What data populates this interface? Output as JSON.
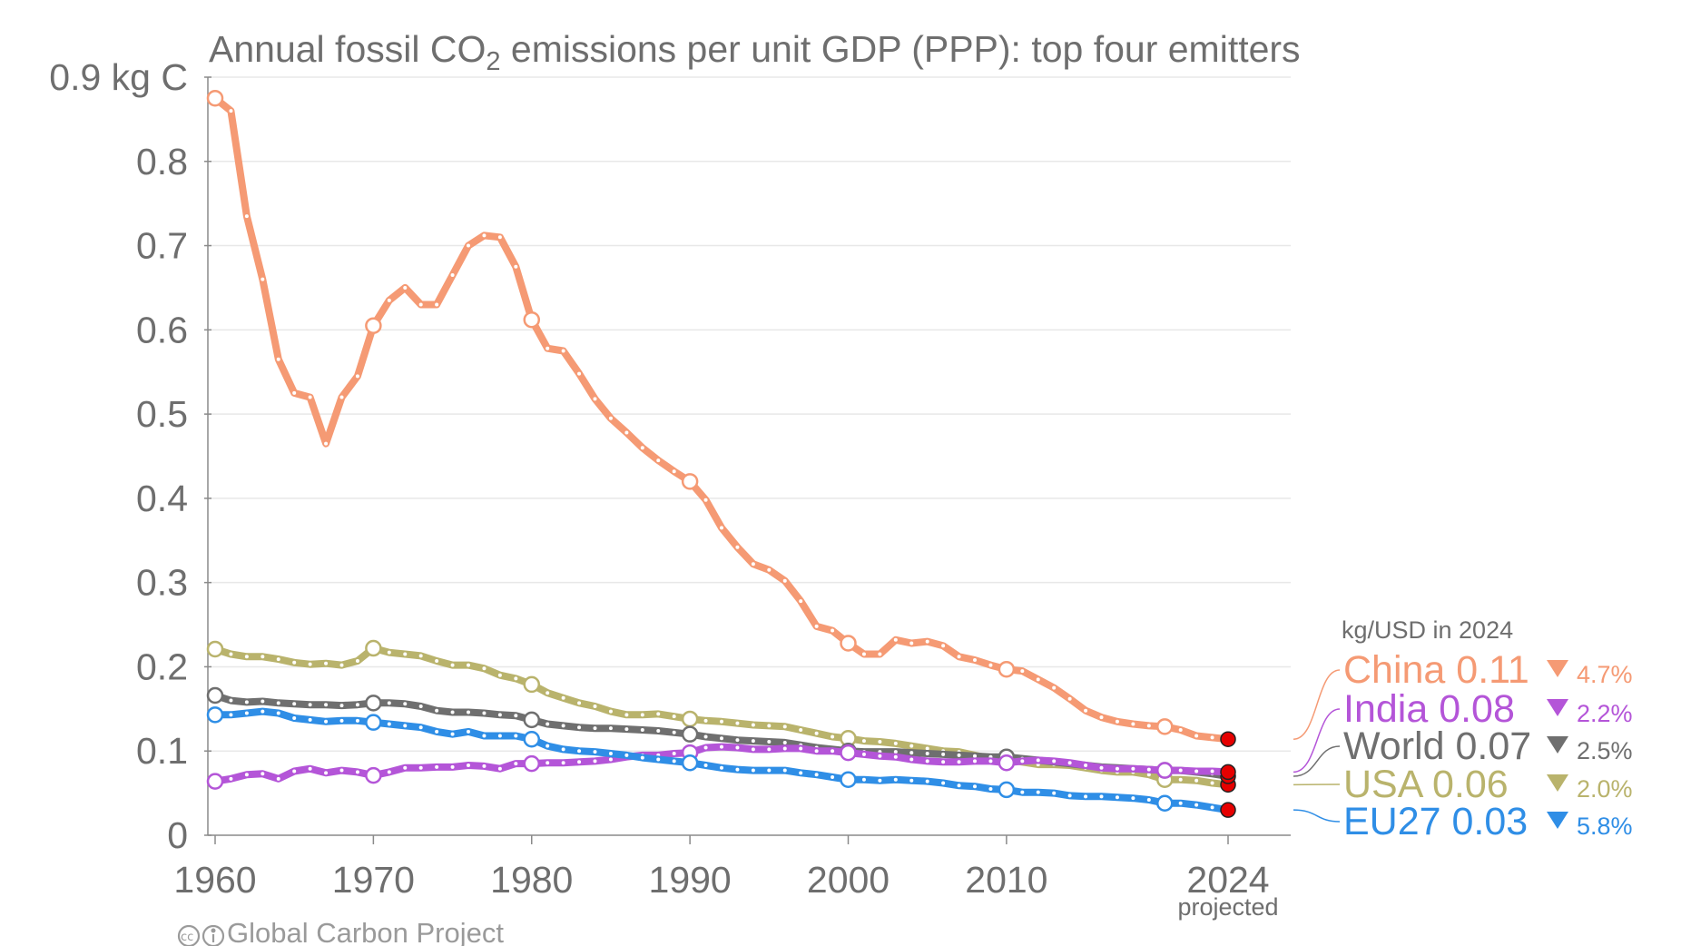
{
  "chart_data": {
    "type": "line",
    "title_parts": {
      "before": "Annual fossil CO",
      "sub": "2",
      "after": " emissions per unit GDP (PPP): top four emitters"
    },
    "y_unit_label": "0.9 kg C",
    "y_ticks": [
      {
        "value": 0,
        "label": "0"
      },
      {
        "value": 0.1,
        "label": "0.1"
      },
      {
        "value": 0.2,
        "label": "0.2"
      },
      {
        "value": 0.3,
        "label": "0.3"
      },
      {
        "value": 0.4,
        "label": "0.4"
      },
      {
        "value": 0.5,
        "label": "0.5"
      },
      {
        "value": 0.6,
        "label": "0.6"
      },
      {
        "value": 0.7,
        "label": "0.7"
      },
      {
        "value": 0.8,
        "label": "0.8"
      },
      {
        "value": 0.9,
        "label": "0.9 kg C"
      }
    ],
    "x_ticks": [
      {
        "value": 1960,
        "label": "1960"
      },
      {
        "value": 1970,
        "label": "1970"
      },
      {
        "value": 1980,
        "label": "1980"
      },
      {
        "value": 1990,
        "label": "1990"
      },
      {
        "value": 2000,
        "label": "2000"
      },
      {
        "value": 2010,
        "label": "2010"
      },
      {
        "value": 2024,
        "label": "2024"
      }
    ],
    "x_sublabel": "projected",
    "xlim": [
      1960,
      2024
    ],
    "ylim": [
      0,
      0.9
    ],
    "grid": "horizontal",
    "legend_title": "kg/USD in 2024",
    "legend_position": "right",
    "open_marker_years": [
      1960,
      1970,
      1980,
      1990,
      2000,
      2010,
      2020
    ],
    "projected_year": 2024,
    "series": [
      {
        "name": "China",
        "color": "#f59a74",
        "value_label": "0.11",
        "change": "4.7%",
        "x": [
          1960,
          1961,
          1962,
          1963,
          1964,
          1965,
          1966,
          1967,
          1968,
          1969,
          1970,
          1971,
          1972,
          1973,
          1974,
          1975,
          1976,
          1977,
          1978,
          1979,
          1980,
          1981,
          1982,
          1983,
          1984,
          1985,
          1986,
          1987,
          1988,
          1989,
          1990,
          1991,
          1992,
          1993,
          1994,
          1995,
          1996,
          1997,
          1998,
          1999,
          2000,
          2001,
          2002,
          2003,
          2004,
          2005,
          2006,
          2007,
          2008,
          2009,
          2010,
          2011,
          2012,
          2013,
          2014,
          2015,
          2016,
          2017,
          2018,
          2019,
          2020,
          2021,
          2022,
          2023,
          2024
        ],
        "values": [
          0.875,
          0.86,
          0.735,
          0.66,
          0.565,
          0.525,
          0.52,
          0.465,
          0.52,
          0.545,
          0.605,
          0.635,
          0.65,
          0.63,
          0.63,
          0.665,
          0.7,
          0.712,
          0.71,
          0.675,
          0.612,
          0.578,
          0.575,
          0.548,
          0.518,
          0.495,
          0.478,
          0.46,
          0.445,
          0.432,
          0.42,
          0.398,
          0.365,
          0.342,
          0.322,
          0.315,
          0.302,
          0.278,
          0.248,
          0.243,
          0.228,
          0.215,
          0.215,
          0.232,
          0.228,
          0.23,
          0.225,
          0.212,
          0.208,
          0.202,
          0.197,
          0.195,
          0.185,
          0.175,
          0.162,
          0.148,
          0.14,
          0.135,
          0.132,
          0.13,
          0.129,
          0.125,
          0.118,
          0.116,
          0.114
        ]
      },
      {
        "name": "India",
        "color": "#b455d8",
        "value_label": "0.08",
        "change": "2.2%",
        "x": [
          1960,
          1961,
          1962,
          1963,
          1964,
          1965,
          1966,
          1967,
          1968,
          1969,
          1970,
          1971,
          1972,
          1973,
          1974,
          1975,
          1976,
          1977,
          1978,
          1979,
          1980,
          1981,
          1982,
          1983,
          1984,
          1985,
          1986,
          1987,
          1988,
          1989,
          1990,
          1991,
          1992,
          1993,
          1994,
          1995,
          1996,
          1997,
          1998,
          1999,
          2000,
          2001,
          2002,
          2003,
          2004,
          2005,
          2006,
          2007,
          2008,
          2009,
          2010,
          2011,
          2012,
          2013,
          2014,
          2015,
          2016,
          2017,
          2018,
          2019,
          2020,
          2021,
          2022,
          2023,
          2024
        ],
        "values": [
          0.064,
          0.067,
          0.072,
          0.073,
          0.067,
          0.076,
          0.079,
          0.074,
          0.077,
          0.075,
          0.071,
          0.075,
          0.08,
          0.08,
          0.081,
          0.081,
          0.083,
          0.082,
          0.079,
          0.085,
          0.085,
          0.086,
          0.086,
          0.087,
          0.088,
          0.09,
          0.093,
          0.095,
          0.095,
          0.097,
          0.098,
          0.104,
          0.105,
          0.104,
          0.102,
          0.102,
          0.103,
          0.103,
          0.1,
          0.1,
          0.098,
          0.096,
          0.094,
          0.093,
          0.09,
          0.088,
          0.087,
          0.087,
          0.088,
          0.088,
          0.086,
          0.088,
          0.089,
          0.088,
          0.086,
          0.083,
          0.08,
          0.079,
          0.079,
          0.078,
          0.077,
          0.077,
          0.076,
          0.076,
          0.075
        ]
      },
      {
        "name": "World",
        "color": "#6f6f6f",
        "value_label": "0.07",
        "change": "2.5%",
        "x": [
          1960,
          1961,
          1962,
          1963,
          1964,
          1965,
          1966,
          1967,
          1968,
          1969,
          1970,
          1971,
          1972,
          1973,
          1974,
          1975,
          1976,
          1977,
          1978,
          1979,
          1980,
          1981,
          1982,
          1983,
          1984,
          1985,
          1986,
          1987,
          1988,
          1989,
          1990,
          1991,
          1992,
          1993,
          1994,
          1995,
          1996,
          1997,
          1998,
          1999,
          2000,
          2001,
          2002,
          2003,
          2004,
          2005,
          2006,
          2007,
          2008,
          2009,
          2010,
          2011,
          2012,
          2013,
          2014,
          2015,
          2016,
          2017,
          2018,
          2019,
          2020,
          2021,
          2022,
          2023,
          2024
        ],
        "values": [
          0.166,
          0.16,
          0.158,
          0.159,
          0.157,
          0.156,
          0.155,
          0.155,
          0.154,
          0.155,
          0.157,
          0.157,
          0.156,
          0.153,
          0.148,
          0.146,
          0.146,
          0.145,
          0.143,
          0.142,
          0.137,
          0.132,
          0.13,
          0.128,
          0.127,
          0.127,
          0.126,
          0.125,
          0.124,
          0.122,
          0.12,
          0.117,
          0.115,
          0.113,
          0.112,
          0.111,
          0.11,
          0.107,
          0.104,
          0.102,
          0.1,
          0.099,
          0.099,
          0.099,
          0.098,
          0.097,
          0.096,
          0.095,
          0.094,
          0.093,
          0.093,
          0.091,
          0.089,
          0.087,
          0.085,
          0.083,
          0.081,
          0.08,
          0.079,
          0.078,
          0.077,
          0.077,
          0.075,
          0.073,
          0.07
        ]
      },
      {
        "name": "USA",
        "color": "#b9b36c",
        "value_label": "0.06",
        "change": "2.0%",
        "x": [
          1960,
          1961,
          1962,
          1963,
          1964,
          1965,
          1966,
          1967,
          1968,
          1969,
          1970,
          1971,
          1972,
          1973,
          1974,
          1975,
          1976,
          1977,
          1978,
          1979,
          1980,
          1981,
          1982,
          1983,
          1984,
          1985,
          1986,
          1987,
          1988,
          1989,
          1990,
          1991,
          1992,
          1993,
          1994,
          1995,
          1996,
          1997,
          1998,
          1999,
          2000,
          2001,
          2002,
          2003,
          2004,
          2005,
          2006,
          2007,
          2008,
          2009,
          2010,
          2011,
          2012,
          2013,
          2014,
          2015,
          2016,
          2017,
          2018,
          2019,
          2020,
          2021,
          2022,
          2023,
          2024
        ],
        "values": [
          0.221,
          0.215,
          0.212,
          0.212,
          0.209,
          0.205,
          0.203,
          0.204,
          0.202,
          0.207,
          0.222,
          0.217,
          0.215,
          0.213,
          0.207,
          0.202,
          0.202,
          0.198,
          0.19,
          0.186,
          0.179,
          0.169,
          0.163,
          0.157,
          0.153,
          0.147,
          0.143,
          0.143,
          0.144,
          0.141,
          0.138,
          0.136,
          0.135,
          0.133,
          0.131,
          0.13,
          0.129,
          0.125,
          0.121,
          0.117,
          0.115,
          0.112,
          0.111,
          0.109,
          0.106,
          0.103,
          0.1,
          0.099,
          0.095,
          0.091,
          0.09,
          0.087,
          0.084,
          0.084,
          0.083,
          0.08,
          0.077,
          0.075,
          0.075,
          0.072,
          0.066,
          0.066,
          0.065,
          0.062,
          0.06
        ]
      },
      {
        "name": "EU27",
        "color": "#2f8ee6",
        "value_label": "0.03",
        "change": "5.8%",
        "x": [
          1960,
          1961,
          1962,
          1963,
          1964,
          1965,
          1966,
          1967,
          1968,
          1969,
          1970,
          1971,
          1972,
          1973,
          1974,
          1975,
          1976,
          1977,
          1978,
          1979,
          1980,
          1981,
          1982,
          1983,
          1984,
          1985,
          1986,
          1987,
          1988,
          1989,
          1990,
          1991,
          1992,
          1993,
          1994,
          1995,
          1996,
          1997,
          1998,
          1999,
          2000,
          2001,
          2002,
          2003,
          2004,
          2005,
          2006,
          2007,
          2008,
          2009,
          2010,
          2011,
          2012,
          2013,
          2014,
          2015,
          2016,
          2017,
          2018,
          2019,
          2020,
          2021,
          2022,
          2023,
          2024
        ],
        "values": [
          0.143,
          0.143,
          0.145,
          0.147,
          0.145,
          0.139,
          0.137,
          0.135,
          0.136,
          0.136,
          0.134,
          0.132,
          0.13,
          0.128,
          0.123,
          0.12,
          0.123,
          0.118,
          0.118,
          0.118,
          0.114,
          0.106,
          0.102,
          0.1,
          0.099,
          0.097,
          0.095,
          0.092,
          0.09,
          0.088,
          0.086,
          0.083,
          0.08,
          0.078,
          0.077,
          0.077,
          0.077,
          0.074,
          0.072,
          0.069,
          0.066,
          0.066,
          0.065,
          0.066,
          0.065,
          0.064,
          0.062,
          0.059,
          0.058,
          0.055,
          0.054,
          0.051,
          0.051,
          0.05,
          0.047,
          0.046,
          0.046,
          0.045,
          0.044,
          0.042,
          0.038,
          0.038,
          0.036,
          0.033,
          0.03
        ]
      }
    ]
  },
  "footer": {
    "credit": "Global Carbon Project",
    "license_icon": "cc-by-icon"
  }
}
